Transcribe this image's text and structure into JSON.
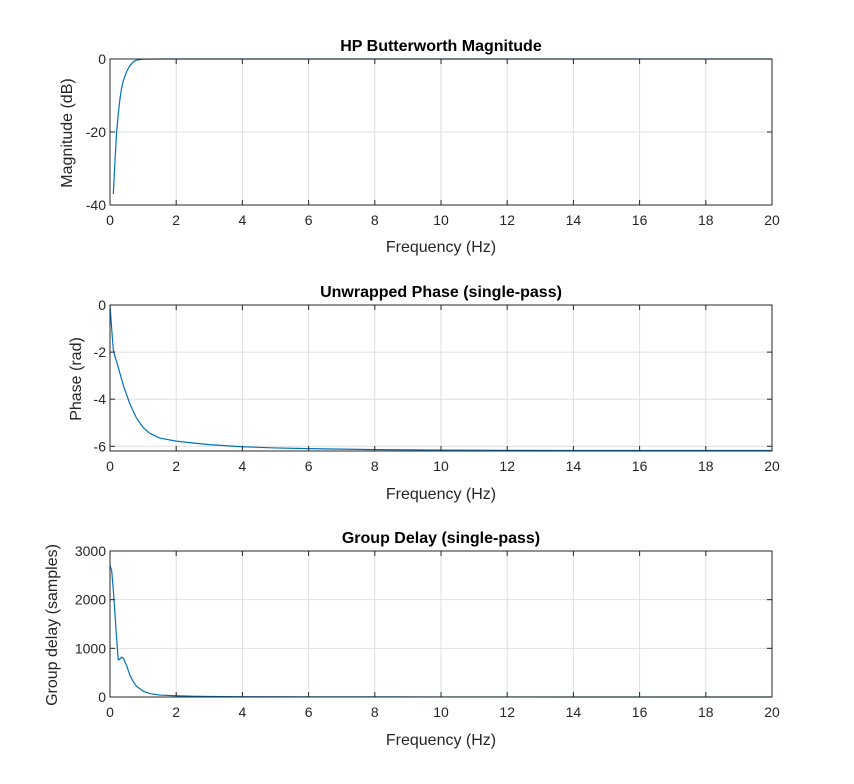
{
  "chart_data": [
    {
      "type": "line",
      "title": "HP Butterworth Magnitude",
      "xlabel": "Frequency (Hz)",
      "ylabel": "Magnitude (dB)",
      "xlim": [
        0,
        20
      ],
      "ylim": [
        -40,
        0
      ],
      "xticks": [
        0,
        2,
        4,
        6,
        8,
        10,
        12,
        14,
        16,
        18,
        20
      ],
      "yticks": [
        -40,
        -20,
        0
      ],
      "grid": true,
      "color": "#0072bd",
      "series": [
        {
          "x": [
            0.1,
            0.15,
            0.2,
            0.25,
            0.3,
            0.35,
            0.4,
            0.5,
            0.6,
            0.7,
            0.8,
            1.0,
            1.5,
            2,
            4,
            6,
            8,
            10,
            12,
            14,
            16,
            18,
            20
          ],
          "values": [
            -37,
            -28,
            -20,
            -15,
            -11,
            -8,
            -6,
            -3.5,
            -1.8,
            -0.8,
            -0.3,
            -0.05,
            0,
            0,
            0,
            0,
            0,
            0,
            0,
            0,
            0,
            0,
            0
          ]
        }
      ]
    },
    {
      "type": "line",
      "title": "Unwrapped Phase (single-pass)",
      "xlabel": "Frequency (Hz)",
      "ylabel": "Phase (rad)",
      "xlim": [
        0,
        20
      ],
      "ylim": [
        -6.2,
        0
      ],
      "xticks": [
        0,
        2,
        4,
        6,
        8,
        10,
        12,
        14,
        16,
        18,
        20
      ],
      "yticks": [
        -6,
        -4,
        -2,
        0
      ],
      "grid": true,
      "color": "#0072bd",
      "series": [
        {
          "x": [
            0,
            0.05,
            0.1,
            0.15,
            0.2,
            0.3,
            0.4,
            0.5,
            0.6,
            0.8,
            1.0,
            1.2,
            1.5,
            2,
            2.5,
            3,
            4,
            5,
            6,
            8,
            10,
            12,
            14,
            16,
            18,
            20
          ],
          "values": [
            0,
            -1.0,
            -1.9,
            -2.2,
            -2.4,
            -2.9,
            -3.4,
            -3.8,
            -4.2,
            -4.8,
            -5.2,
            -5.45,
            -5.65,
            -5.78,
            -5.86,
            -5.93,
            -6.02,
            -6.07,
            -6.1,
            -6.14,
            -6.16,
            -6.17,
            -6.18,
            -6.18,
            -6.18,
            -6.18
          ]
        }
      ]
    },
    {
      "type": "line",
      "title": "Group Delay (single-pass)",
      "xlabel": "Frequency (Hz)",
      "ylabel": "Group delay (samples)",
      "xlim": [
        0,
        20
      ],
      "ylim": [
        0,
        3000
      ],
      "xticks": [
        0,
        2,
        4,
        6,
        8,
        10,
        12,
        14,
        16,
        18,
        20
      ],
      "yticks": [
        0,
        1000,
        2000,
        3000
      ],
      "grid": true,
      "color": "#0072bd",
      "series": [
        {
          "x": [
            0,
            0.05,
            0.1,
            0.15,
            0.2,
            0.25,
            0.3,
            0.35,
            0.4,
            0.5,
            0.6,
            0.7,
            0.8,
            1.0,
            1.2,
            1.5,
            2,
            2.5,
            3,
            4,
            6,
            8,
            10,
            12,
            14,
            16,
            18,
            20
          ],
          "values": [
            2700,
            2600,
            2200,
            1700,
            1200,
            760,
            780,
            820,
            800,
            650,
            450,
            320,
            220,
            120,
            70,
            40,
            25,
            15,
            10,
            5,
            3,
            2,
            1,
            1,
            0,
            0,
            0,
            0
          ]
        }
      ]
    }
  ]
}
